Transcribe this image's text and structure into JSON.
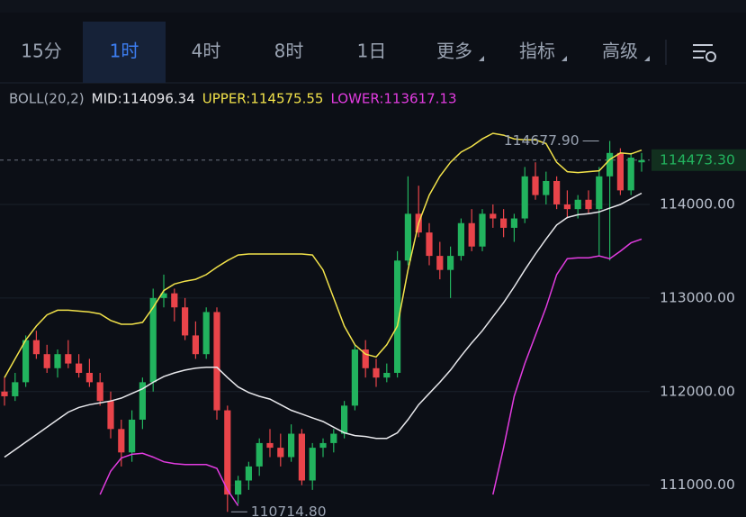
{
  "toolbar": {
    "tabs": [
      "15分",
      "1时",
      "4时",
      "8时",
      "1日",
      "更多",
      "指标",
      "高级"
    ],
    "selected": 1
  },
  "chart_data": {
    "type": "candlestick",
    "indicator": "BOLL(20,2)",
    "up_color": "#22b35e",
    "down_color": "#e9444a",
    "open": [
      112000,
      111950,
      112100,
      112550,
      112400,
      112250,
      112400,
      112300,
      112200,
      112100,
      111900,
      111600,
      111350,
      111700,
      112100,
      113000,
      113050,
      112900,
      112600,
      112400,
      112850,
      111800,
      110900,
      111050,
      111200,
      111450,
      111400,
      111300,
      111550,
      111050,
      111400,
      111450,
      111550,
      111850,
      112450,
      112250,
      112150,
      112200,
      113400,
      113900,
      113700,
      113450,
      113300,
      113450,
      113800,
      113550,
      113900,
      113850,
      113750,
      113850,
      114300,
      114100,
      114250,
      114000,
      113950,
      114050,
      113950,
      114300,
      114550,
      114150,
      114450
    ],
    "high": [
      112150,
      112200,
      112600,
      112650,
      112500,
      112450,
      112550,
      112400,
      112350,
      112200,
      112000,
      111700,
      111800,
      112150,
      113100,
      113250,
      113100,
      113000,
      112750,
      112900,
      112900,
      111850,
      111100,
      111250,
      111500,
      111600,
      111550,
      111650,
      111600,
      111450,
      111500,
      111600,
      111900,
      112500,
      112550,
      112350,
      112300,
      113500,
      114300,
      114200,
      113800,
      113600,
      113550,
      113850,
      113950,
      113950,
      114000,
      113950,
      113900,
      114400,
      114450,
      114350,
      114300,
      114150,
      114100,
      114150,
      114400,
      114677.9,
      114600,
      114550,
      114550
    ],
    "low": [
      111850,
      111900,
      112050,
      112350,
      112200,
      112150,
      112250,
      112150,
      112050,
      111850,
      111500,
      111200,
      111250,
      111600,
      112000,
      112900,
      112750,
      112550,
      112350,
      112350,
      111700,
      110714.8,
      110800,
      110950,
      111100,
      111300,
      111200,
      111250,
      111000,
      110950,
      111300,
      111350,
      111500,
      111800,
      112150,
      112050,
      112100,
      112150,
      113350,
      113650,
      113350,
      113200,
      113000,
      113400,
      113500,
      113500,
      113750,
      113650,
      113600,
      113800,
      114050,
      114000,
      113950,
      113850,
      113850,
      113900,
      113450,
      113400,
      114100,
      114100,
      114350
    ],
    "close": [
      111950,
      112100,
      112550,
      112400,
      112250,
      112400,
      112300,
      112200,
      112100,
      111900,
      111600,
      111350,
      111700,
      112100,
      113000,
      113050,
      112900,
      112600,
      112400,
      112850,
      111800,
      110900,
      111050,
      111200,
      111450,
      111400,
      111300,
      111550,
      111050,
      111400,
      111450,
      111550,
      111850,
      112450,
      112250,
      112150,
      112200,
      113400,
      113900,
      113700,
      113450,
      113300,
      113450,
      113800,
      113550,
      113900,
      113850,
      113750,
      113850,
      114300,
      114100,
      114250,
      114000,
      113950,
      114050,
      113950,
      114300,
      114550,
      114150,
      114500,
      114473.3
    ],
    "series": [
      {
        "name": "MID:114096.34",
        "color": "#e8e8ec",
        "values": [
          111300,
          111380,
          111460,
          111540,
          111620,
          111700,
          111780,
          111830,
          111860,
          111880,
          111900,
          111930,
          111980,
          112030,
          112100,
          112160,
          112200,
          112230,
          112250,
          112260,
          112260,
          112150,
          112050,
          111990,
          111950,
          111920,
          111860,
          111800,
          111760,
          111720,
          111680,
          111620,
          111560,
          111530,
          111520,
          111500,
          111500,
          111560,
          111700,
          111860,
          111980,
          112100,
          112230,
          112380,
          112520,
          112650,
          112800,
          112950,
          113120,
          113300,
          113470,
          113630,
          113780,
          113860,
          113890,
          113900,
          113920,
          113960,
          114000,
          114060,
          114120
        ]
      },
      {
        "name": "UPPER:114575.55",
        "color": "#f2e24a",
        "values": [
          112150,
          112350,
          112550,
          112700,
          112820,
          112870,
          112870,
          112860,
          112850,
          112830,
          112760,
          112720,
          112720,
          112740,
          112900,
          113080,
          113150,
          113180,
          113200,
          113250,
          113330,
          113400,
          113460,
          113470,
          113470,
          113470,
          113470,
          113470,
          113470,
          113460,
          113300,
          113000,
          112700,
          112500,
          112400,
          112370,
          112500,
          112700,
          113300,
          113800,
          114100,
          114300,
          114450,
          114560,
          114620,
          114700,
          114760,
          114740,
          114700,
          114690,
          114690,
          114650,
          114450,
          114350,
          114340,
          114350,
          114360,
          114480,
          114550,
          114540,
          114580
        ]
      },
      {
        "name": "LOWER:113617.13",
        "color": "#e23ce0",
        "values": [
          null,
          null,
          null,
          null,
          null,
          null,
          null,
          null,
          null,
          110900,
          111150,
          111290,
          111330,
          111340,
          111300,
          111250,
          111230,
          111220,
          111220,
          111220,
          111180,
          110950,
          110780,
          null,
          null,
          null,
          null,
          null,
          null,
          null,
          null,
          null,
          null,
          null,
          null,
          null,
          null,
          null,
          null,
          null,
          null,
          null,
          null,
          null,
          null,
          null,
          110900,
          111400,
          111950,
          112300,
          112600,
          112900,
          113250,
          113420,
          113430,
          113430,
          113450,
          113420,
          113500,
          113590,
          113630
        ]
      }
    ],
    "ylim": [
      110660,
      115270
    ],
    "yticks": [
      {
        "value": 111000,
        "label": "111000.00"
      },
      {
        "value": 112000,
        "label": "112000.00"
      },
      {
        "value": 113000,
        "label": "113000.00"
      },
      {
        "value": 114000,
        "label": "114000.00"
      }
    ],
    "grid": true,
    "last_price": {
      "value": 114473.3,
      "label": "114473.30"
    },
    "max_label": {
      "value": 114677.9,
      "label": "114677.90"
    },
    "min_label": {
      "value": 110714.8,
      "label": "110714.80"
    }
  }
}
